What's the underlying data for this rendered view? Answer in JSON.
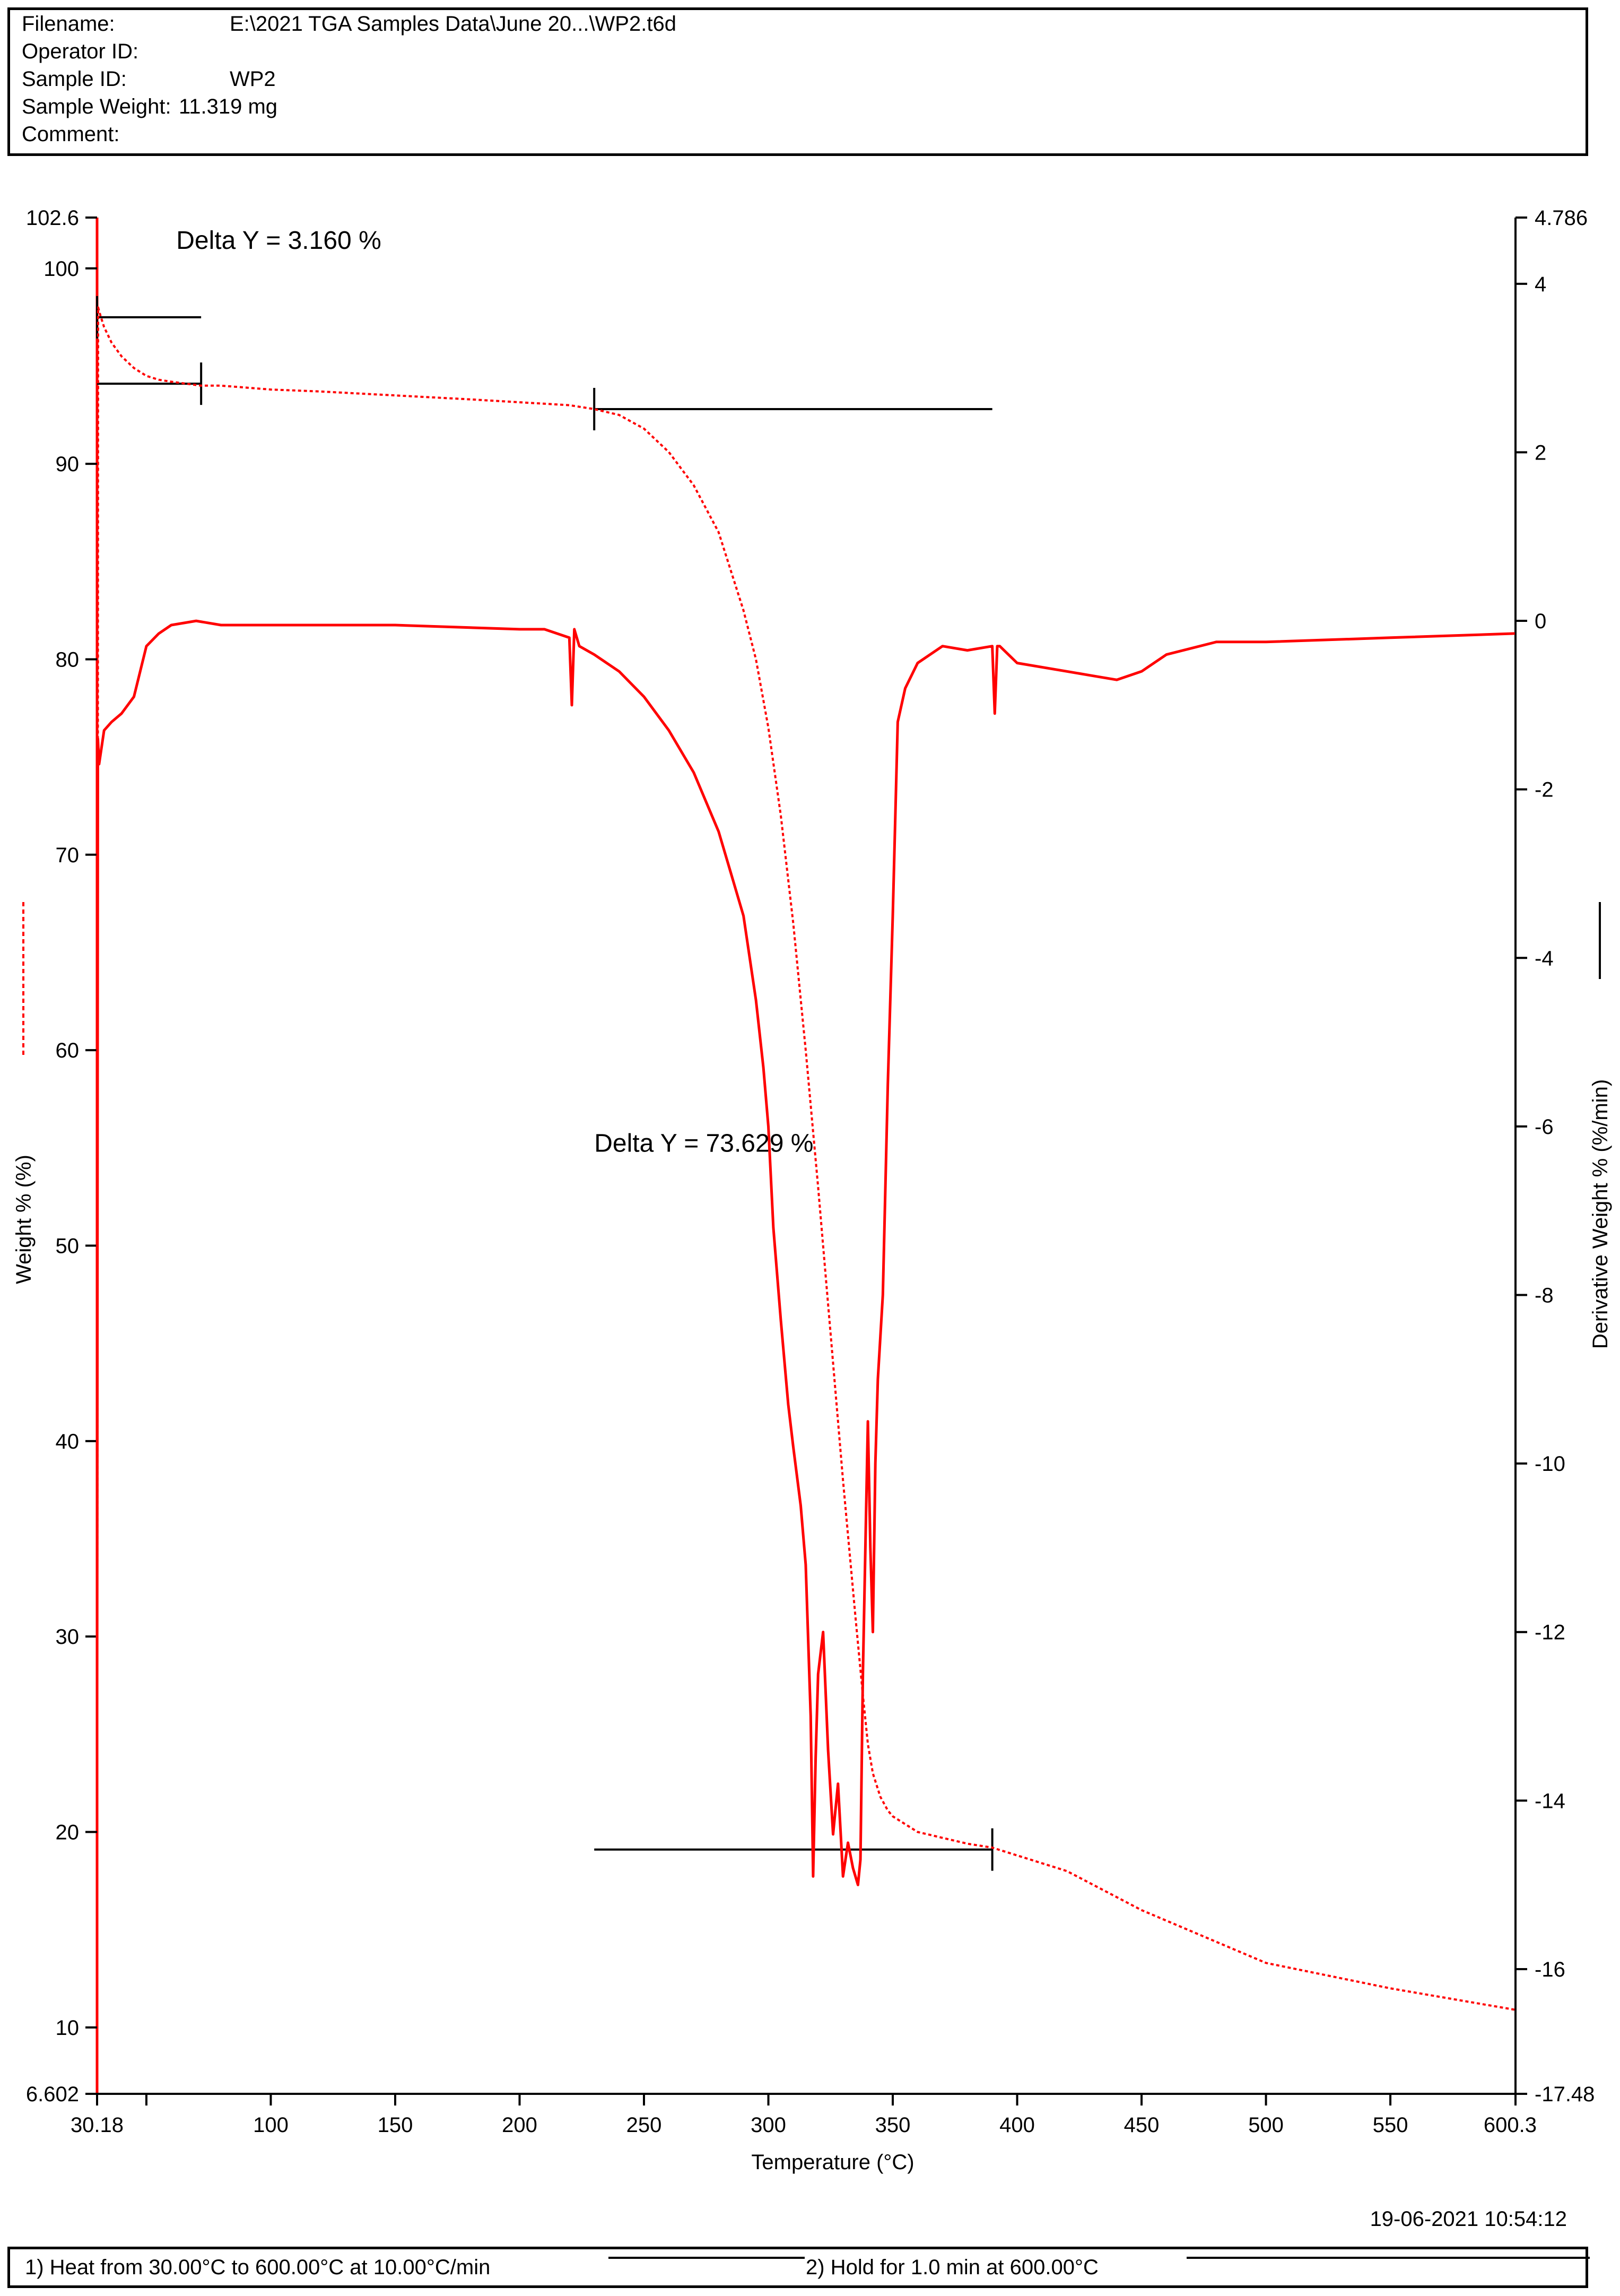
{
  "header": {
    "filename_label": "Filename:",
    "filename_value": "E:\\2021 TGA Samples Data\\June 20...\\WP2.t6d",
    "operator_label": "Operator ID:",
    "operator_value": "",
    "sample_id_label": "Sample ID:",
    "sample_id_value": "WP2",
    "sample_weight_label": "Sample Weight:",
    "sample_weight_value": "11.319 mg",
    "comment_label": "Comment:",
    "comment_value": ""
  },
  "timestamp": "19-06-2021 10:54:12",
  "footer": {
    "step1": "1)  Heat from 30.00°C to 600.00°C at 10.00°C/min",
    "step2": "2)   Hold for 1.0 min at 600.00°C"
  },
  "colors": {
    "trace": "#ff0000",
    "axis": "#000000",
    "left_axis_line": "#ff0000"
  },
  "chart_data": {
    "type": "line",
    "xlabel": "Temperature (°C)",
    "ylabel_left": "Weight % (%)",
    "ylabel_right": "Derivative Weight % (%/min)",
    "xlim": [
      30.18,
      600.3
    ],
    "ylim_left": [
      6.602,
      102.6
    ],
    "ylim_right": [
      -17.48,
      4.786
    ],
    "x_ticks": [
      {
        "value": 30.18,
        "label": "30.18"
      },
      {
        "value": 50,
        "label": ""
      },
      {
        "value": 100,
        "label": "100"
      },
      {
        "value": 150,
        "label": "150"
      },
      {
        "value": 200,
        "label": "200"
      },
      {
        "value": 250,
        "label": "250"
      },
      {
        "value": 300,
        "label": "300"
      },
      {
        "value": 350,
        "label": "350"
      },
      {
        "value": 400,
        "label": "400"
      },
      {
        "value": 450,
        "label": "450"
      },
      {
        "value": 500,
        "label": "500"
      },
      {
        "value": 550,
        "label": "550"
      },
      {
        "value": 600.3,
        "label": "600.3"
      }
    ],
    "y_left_ticks": [
      {
        "value": 102.6,
        "label": "102.6"
      },
      {
        "value": 100,
        "label": "100"
      },
      {
        "value": 90,
        "label": "90"
      },
      {
        "value": 80,
        "label": "80"
      },
      {
        "value": 70,
        "label": "70"
      },
      {
        "value": 60,
        "label": "60"
      },
      {
        "value": 50,
        "label": "50"
      },
      {
        "value": 40,
        "label": "40"
      },
      {
        "value": 30,
        "label": "30"
      },
      {
        "value": 20,
        "label": "20"
      },
      {
        "value": 10,
        "label": "10"
      },
      {
        "value": 6.602,
        "label": "6.602"
      }
    ],
    "y_right_ticks": [
      {
        "value": 4.786,
        "label": "4.786"
      },
      {
        "value": 4,
        "label": "4"
      },
      {
        "value": 2,
        "label": "2"
      },
      {
        "value": 0,
        "label": "0"
      },
      {
        "value": -2,
        "label": "-2"
      },
      {
        "value": -4,
        "label": "-4"
      },
      {
        "value": -6,
        "label": "-6"
      },
      {
        "value": -8,
        "label": "-8"
      },
      {
        "value": -10,
        "label": "-10"
      },
      {
        "value": -12,
        "label": "-12"
      },
      {
        "value": -14,
        "label": "-14"
      },
      {
        "value": -16,
        "label": "-16"
      },
      {
        "value": -17.48,
        "label": "-17.48"
      }
    ],
    "series": [
      {
        "axis": "left",
        "style": "dotted",
        "x": [
          30.18,
          30.6,
          31.5,
          33,
          36,
          40,
          45,
          50,
          55,
          60,
          66,
          72,
          80,
          100,
          120,
          150,
          180,
          200,
          220,
          230,
          240,
          250,
          260,
          270,
          280,
          290,
          295,
          300,
          305,
          310,
          315,
          320,
          325,
          330,
          335,
          338,
          340,
          342,
          345,
          348,
          350,
          360,
          380,
          390,
          400,
          420,
          450,
          500,
          550,
          600.3
        ],
        "y": [
          10.5,
          98,
          97.6,
          97.0,
          96.2,
          95.5,
          94.9,
          94.5,
          94.3,
          94.2,
          94.1,
          94.0,
          94.0,
          93.8,
          93.7,
          93.5,
          93.3,
          93.15,
          93.0,
          92.8,
          92.5,
          91.8,
          90.6,
          88.9,
          86.5,
          82.5,
          80.0,
          76.5,
          72.0,
          66.5,
          60.0,
          53.0,
          45.5,
          38.0,
          31.0,
          27.0,
          24.5,
          23.0,
          21.8,
          21.1,
          20.8,
          20.0,
          19.4,
          19.2,
          18.8,
          18.0,
          16.0,
          13.3,
          12.0,
          10.9
        ]
      },
      {
        "axis": "right",
        "style": "solid",
        "x": [
          30.18,
          30.5,
          31,
          33,
          36,
          40,
          45,
          50,
          55,
          60,
          70,
          80,
          100,
          150,
          200,
          210,
          220,
          221,
          222,
          223,
          224,
          230,
          240,
          250,
          260,
          270,
          280,
          285,
          290,
          295,
          298,
          300,
          302,
          305,
          308,
          310,
          313,
          315,
          317,
          318,
          319,
          320,
          322,
          324,
          326,
          328,
          330,
          332,
          334,
          336,
          337,
          338,
          340,
          341,
          342,
          343,
          344,
          345,
          346,
          348,
          350,
          352,
          355,
          360,
          370,
          380,
          390,
          391,
          392,
          393,
          400,
          420,
          430,
          440,
          450,
          460,
          480,
          500,
          550,
          600
        ],
        "y": [
          -13,
          -1.4,
          -1.7,
          -1.3,
          -1.2,
          -1.1,
          -0.9,
          -0.3,
          -0.15,
          -0.05,
          0.0,
          -0.05,
          -0.05,
          -0.05,
          -0.1,
          -0.1,
          -0.2,
          -1.0,
          -0.1,
          -0.2,
          -0.3,
          -0.4,
          -0.6,
          -0.9,
          -1.3,
          -1.8,
          -2.5,
          -3.0,
          -3.5,
          -4.5,
          -5.3,
          -6.0,
          -7.2,
          -8.3,
          -9.3,
          -9.8,
          -10.5,
          -11.2,
          -13.0,
          -14.9,
          -13.5,
          -12.5,
          -12.0,
          -13.4,
          -14.4,
          -13.8,
          -14.9,
          -14.5,
          -14.8,
          -15.0,
          -14.7,
          -12.5,
          -9.5,
          -11.0,
          -12.0,
          -10.0,
          -9.0,
          -8.5,
          -8.0,
          -5.5,
          -3.5,
          -1.2,
          -0.8,
          -0.5,
          -0.3,
          -0.35,
          -0.3,
          -1.1,
          -0.3,
          -0.3,
          -0.5,
          -0.6,
          -0.65,
          -0.7,
          -0.6,
          -0.4,
          -0.25,
          -0.25,
          -0.2,
          -0.15
        ]
      }
    ],
    "markers": [
      {
        "axis": "left",
        "x": [
          30.18,
          72
        ],
        "y": 97.5
      },
      {
        "axis": "left",
        "x": [
          30.18,
          72
        ],
        "y": 94.1
      },
      {
        "axis": "left",
        "x": [
          230,
          390
        ],
        "y": 92.8
      },
      {
        "axis": "left",
        "x": [
          230,
          390
        ],
        "y": 19.1
      }
    ],
    "annotations": [
      {
        "text": "Delta Y = 3.160 %",
        "x": 62,
        "y": 101
      },
      {
        "text": "Delta Y = 73.629 %",
        "x": 230,
        "y": 54.8
      }
    ]
  }
}
